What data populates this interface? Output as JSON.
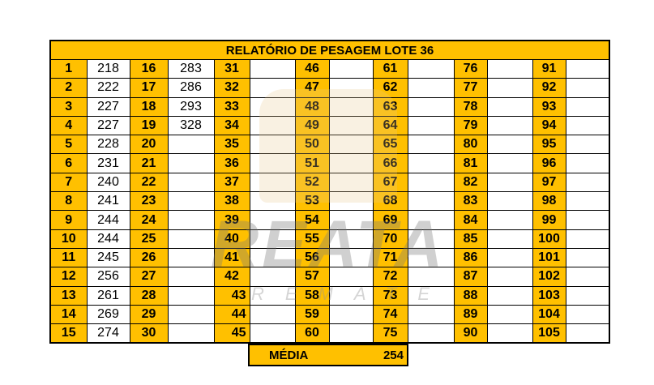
{
  "title": "RELATÓRIO DE PESAGEM LOTE 36",
  "weights": [
    218,
    222,
    227,
    227,
    228,
    231,
    240,
    241,
    244,
    244,
    245,
    256,
    261,
    269,
    274,
    283,
    286,
    293,
    328
  ],
  "total_slots": 105,
  "media": {
    "label": "MÉDIA",
    "value": "254"
  },
  "watermark": {
    "brand": "REATA",
    "sub": "REMATES"
  },
  "colors": {
    "header": "#FFC000",
    "border": "#000000"
  }
}
